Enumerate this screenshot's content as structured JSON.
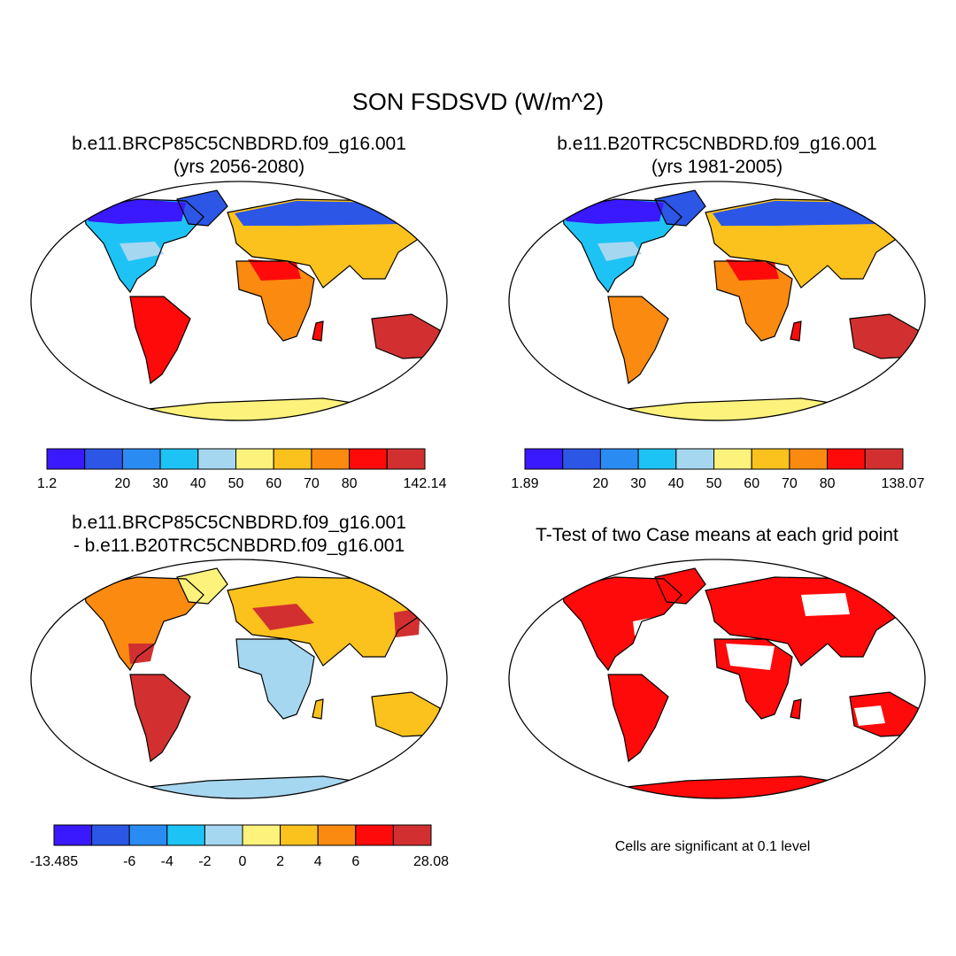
{
  "figure": {
    "title": "SON FSDSVD (W/m^2)",
    "variable": "FSDSVD",
    "season": "SON",
    "units": "W/m^2"
  },
  "palette": [
    "#3a19ff",
    "#2c56e6",
    "#2a8cf2",
    "#1ec3f5",
    "#a6d7f0",
    "#fdf27c",
    "#fbc21e",
    "#fa8a10",
    "#ff0a0a",
    "#d23030"
  ],
  "panels": [
    {
      "id": "case1",
      "title_line1": "b.e11.BRCP85C5CNBDRD.f09_g16.001",
      "title_line2": "(yrs 2056-2080)",
      "colorbar_labels": [
        "1.2",
        "20",
        "30",
        "40",
        "50",
        "60",
        "70",
        "80",
        "142.14"
      ],
      "colorbar_min": 1.2,
      "colorbar_max": 142.14
    },
    {
      "id": "case2",
      "title_line1": "b.e11.B20TRC5CNBDRD.f09_g16.001",
      "title_line2": "(yrs 1981-2005)",
      "colorbar_labels": [
        "1.89",
        "20",
        "30",
        "40",
        "50",
        "60",
        "70",
        "80",
        "138.07"
      ],
      "colorbar_min": 1.89,
      "colorbar_max": 138.07
    },
    {
      "id": "diff",
      "title_line1": "b.e11.BRCP85C5CNBDRD.f09_g16.001",
      "title_line2": "- b.e11.B20TRC5CNBDRD.f09_g16.001",
      "colorbar_labels": [
        "-13.485",
        "-6",
        "-4",
        "-2",
        "0",
        "2",
        "4",
        "6",
        "28.08"
      ],
      "colorbar_min": -13.485,
      "colorbar_max": 28.08
    },
    {
      "id": "ttest",
      "title_line1": "T-Test of two Case means at each grid point",
      "note": "Cells are significant at 0.1 level",
      "significant_color": "#ff0000"
    }
  ]
}
